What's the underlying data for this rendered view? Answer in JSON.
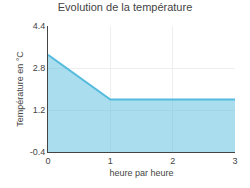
{
  "chart_data": {
    "type": "area",
    "title": "Evolution de la température",
    "xlabel": "heure par heure",
    "ylabel": "Température en °C",
    "x": [
      0,
      1,
      1,
      3
    ],
    "values": [
      3.3,
      1.6,
      1.6,
      1.6
    ],
    "color": "#55bbdd",
    "xlim": [
      0,
      3
    ],
    "ylim": [
      -0.4,
      4.4
    ],
    "xticks": [
      0,
      1,
      2,
      3
    ],
    "yticks": [
      -0.4,
      1.2,
      2.8,
      4.4
    ],
    "grid": true
  }
}
